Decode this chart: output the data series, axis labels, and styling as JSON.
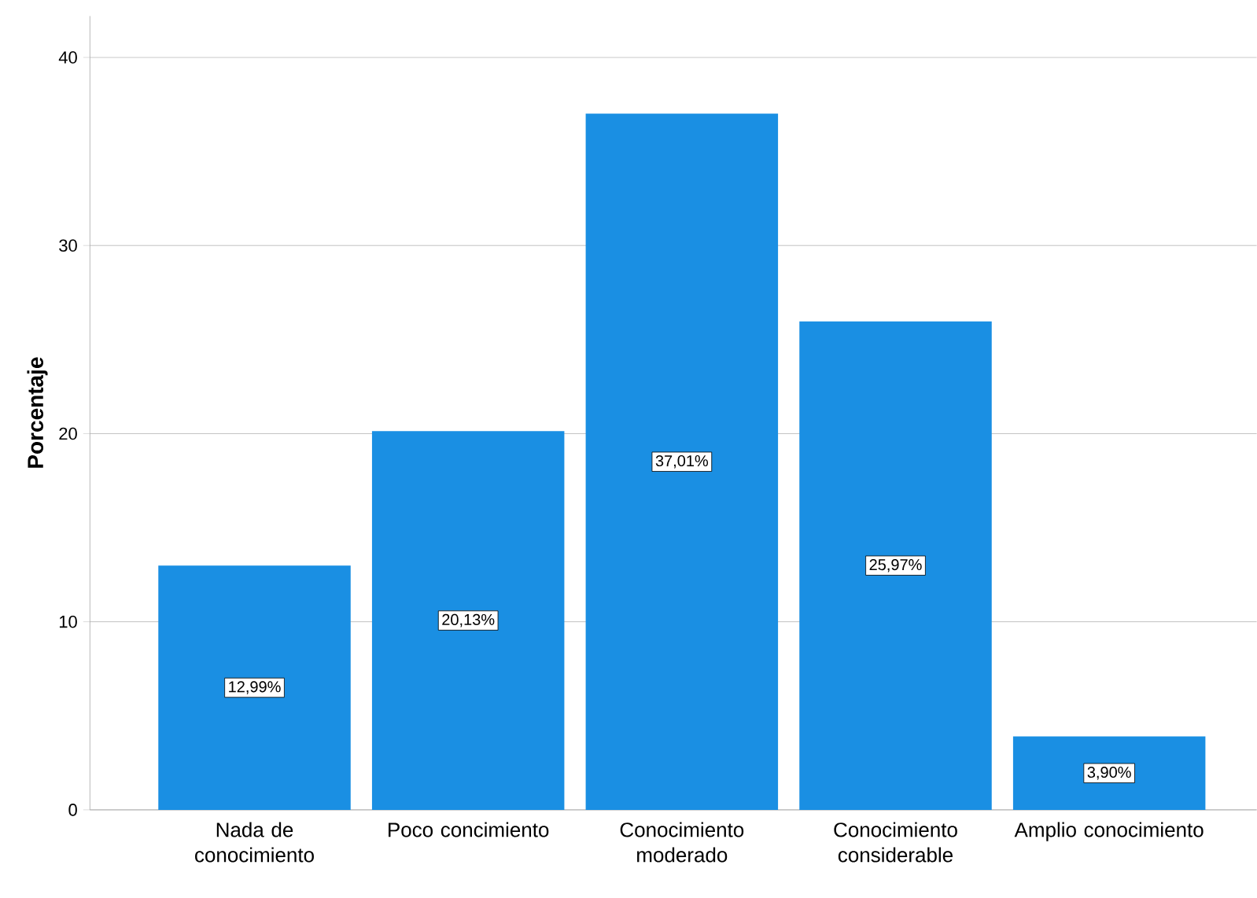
{
  "chart_data": {
    "type": "bar",
    "ylabel": "Porcentaje",
    "categories": [
      "Nada de conocimiento",
      "Poco concimiento",
      "Conocimiento moderado",
      "Conocimiento considerable",
      "Amplio conocimiento"
    ],
    "values": [
      12.99,
      20.13,
      37.01,
      25.97,
      3.9
    ],
    "value_labels": [
      "12,99%",
      "20,13%",
      "37,01%",
      "25,97%",
      "3,90%"
    ],
    "color": "#1a8fe3",
    "ylim": [
      0,
      42.2
    ],
    "yticks": [
      0,
      10,
      20,
      30,
      40
    ],
    "grid": "y"
  }
}
